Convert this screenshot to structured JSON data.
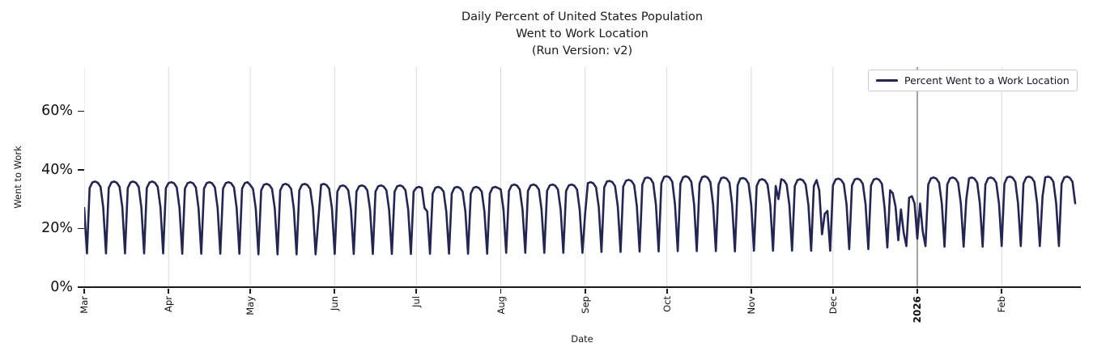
{
  "chart_data": {
    "type": "line",
    "title_lines": [
      "Daily Percent of United States Population",
      "Went to Work Location",
      "(Run Version: v2)"
    ],
    "xlabel": "Date",
    "ylabel": "Went to Work",
    "ylim": [
      0,
      75
    ],
    "grid": {
      "vertical": true,
      "horizontal": false,
      "color": "#d9d9d9",
      "year_line_color": "#4a4a4a"
    },
    "axis_color": "#1a1a1a",
    "legend": {
      "position": "upper right",
      "entries": [
        {
          "label": "Percent Went to a Work Location",
          "color": "#232552"
        }
      ]
    },
    "yticks": [
      {
        "label": "0%",
        "value": 0
      },
      {
        "label": "20%",
        "value": 20
      },
      {
        "label": "40%",
        "value": 40
      },
      {
        "label": "60%",
        "value": 60
      }
    ],
    "xticks": [
      {
        "label": "Mar",
        "day": 0,
        "bold": false
      },
      {
        "label": "Apr",
        "day": 31,
        "bold": false
      },
      {
        "label": "May",
        "day": 61,
        "bold": false
      },
      {
        "label": "Jun",
        "day": 92,
        "bold": false
      },
      {
        "label": "Jul",
        "day": 122,
        "bold": false
      },
      {
        "label": "Aug",
        "day": 153,
        "bold": false
      },
      {
        "label": "Sep",
        "day": 184,
        "bold": false
      },
      {
        "label": "Oct",
        "day": 214,
        "bold": false
      },
      {
        "label": "Nov",
        "day": 245,
        "bold": false
      },
      {
        "label": "Dec",
        "day": 275,
        "bold": false
      },
      {
        "label": "2026",
        "day": 306,
        "bold": true
      },
      {
        "label": "Feb",
        "day": 337,
        "bold": false
      }
    ],
    "series": [
      {
        "name": "Percent Went to a Work Location",
        "color": "#232552",
        "line_width": 2.6,
        "start_date": "2025-03-01",
        "frequency": "daily",
        "unit": "percent",
        "values": [
          27.0,
          11.5,
          33.8,
          35.7,
          36.0,
          35.6,
          34.2,
          27.2,
          11.5,
          33.8,
          35.7,
          36.0,
          35.6,
          34.2,
          27.2,
          11.5,
          33.8,
          35.7,
          36.0,
          35.6,
          34.2,
          27.2,
          11.5,
          33.8,
          35.7,
          36.0,
          35.6,
          34.2,
          27.2,
          11.5,
          33.8,
          35.5,
          35.8,
          35.4,
          34.0,
          27.0,
          11.4,
          33.6,
          35.5,
          35.8,
          35.4,
          34.0,
          27.0,
          11.4,
          33.6,
          35.5,
          35.8,
          35.4,
          34.0,
          27.0,
          11.4,
          33.6,
          35.5,
          35.8,
          35.4,
          34.0,
          27.0,
          11.4,
          33.6,
          35.5,
          35.8,
          34.8,
          33.5,
          26.8,
          11.2,
          33.0,
          34.9,
          35.2,
          34.8,
          33.5,
          26.8,
          11.2,
          33.0,
          34.9,
          35.2,
          34.8,
          33.5,
          26.8,
          11.2,
          33.0,
          34.9,
          35.2,
          34.8,
          33.5,
          26.8,
          11.2,
          23.0,
          34.9,
          35.2,
          34.8,
          33.5,
          26.8,
          11.3,
          32.6,
          34.4,
          34.7,
          34.3,
          33.0,
          26.4,
          11.3,
          32.6,
          34.4,
          34.7,
          34.3,
          33.0,
          26.4,
          11.3,
          32.6,
          34.4,
          34.7,
          34.3,
          33.0,
          26.4,
          11.3,
          32.6,
          34.4,
          34.7,
          34.3,
          33.0,
          26.4,
          11.3,
          32.6,
          33.9,
          34.2,
          33.8,
          27.0,
          25.8,
          11.4,
          31.9,
          33.9,
          34.2,
          33.8,
          32.6,
          25.8,
          11.4,
          31.9,
          33.9,
          34.2,
          33.8,
          32.6,
          25.8,
          11.4,
          31.9,
          33.9,
          34.2,
          33.8,
          32.6,
          25.8,
          11.4,
          31.9,
          33.9,
          34.2,
          33.8,
          33.3,
          26.4,
          11.7,
          32.8,
          34.7,
          35.0,
          34.6,
          33.3,
          26.4,
          11.7,
          32.8,
          34.7,
          35.0,
          34.6,
          33.3,
          26.4,
          11.7,
          32.8,
          34.7,
          35.0,
          34.6,
          33.3,
          26.4,
          11.7,
          32.8,
          34.7,
          35.0,
          34.6,
          33.3,
          26.4,
          11.7,
          25.0,
          35.5,
          35.8,
          35.4,
          34.0,
          27.2,
          12.0,
          34.0,
          36.0,
          36.2,
          35.8,
          34.4,
          27.4,
          12.0,
          34.3,
          36.3,
          36.6,
          36.2,
          34.8,
          27.6,
          12.1,
          35.0,
          37.2,
          37.4,
          37.0,
          35.5,
          28.0,
          12.2,
          35.4,
          37.6,
          37.8,
          37.4,
          35.9,
          28.2,
          12.3,
          35.3,
          37.5,
          37.8,
          37.4,
          35.9,
          28.2,
          12.3,
          35.3,
          37.5,
          37.8,
          37.3,
          35.8,
          28.1,
          12.3,
          35.0,
          37.2,
          37.4,
          37.0,
          35.6,
          28.0,
          12.2,
          34.8,
          37.0,
          37.2,
          36.8,
          35.4,
          28.0,
          12.4,
          34.5,
          36.5,
          36.8,
          36.4,
          35.0,
          28.0,
          12.4,
          34.5,
          30.0,
          36.8,
          36.4,
          35.0,
          28.0,
          12.4,
          34.5,
          36.5,
          36.8,
          36.4,
          35.0,
          28.0,
          12.4,
          34.5,
          36.5,
          33.0,
          18.0,
          25.0,
          26.0,
          12.4,
          34.7,
          36.7,
          37.0,
          36.6,
          35.2,
          28.2,
          13.0,
          34.7,
          36.7,
          37.0,
          36.6,
          35.2,
          28.2,
          13.0,
          34.7,
          36.7,
          37.0,
          36.6,
          35.2,
          27.0,
          13.5,
          33.0,
          32.0,
          27.5,
          16.0,
          26.5,
          18.5,
          14.0,
          30.5,
          31.0,
          28.5,
          16.5,
          28.5,
          19.0,
          14.0,
          35.0,
          37.1,
          37.4,
          37.0,
          35.6,
          28.4,
          13.8,
          35.0,
          37.1,
          37.4,
          37.0,
          35.6,
          28.4,
          13.8,
          30.0,
          37.1,
          37.4,
          37.0,
          35.6,
          28.4,
          13.8,
          35.0,
          37.1,
          37.4,
          37.0,
          35.6,
          28.4,
          14.0,
          35.3,
          37.4,
          37.7,
          37.3,
          35.9,
          28.6,
          14.0,
          35.3,
          37.4,
          37.7,
          37.3,
          35.9,
          28.6,
          14.0,
          31.0,
          37.4,
          37.7,
          37.3,
          35.9,
          28.6,
          14.0,
          35.3,
          37.4,
          37.7,
          37.3,
          35.9,
          28.6
        ]
      }
    ]
  }
}
